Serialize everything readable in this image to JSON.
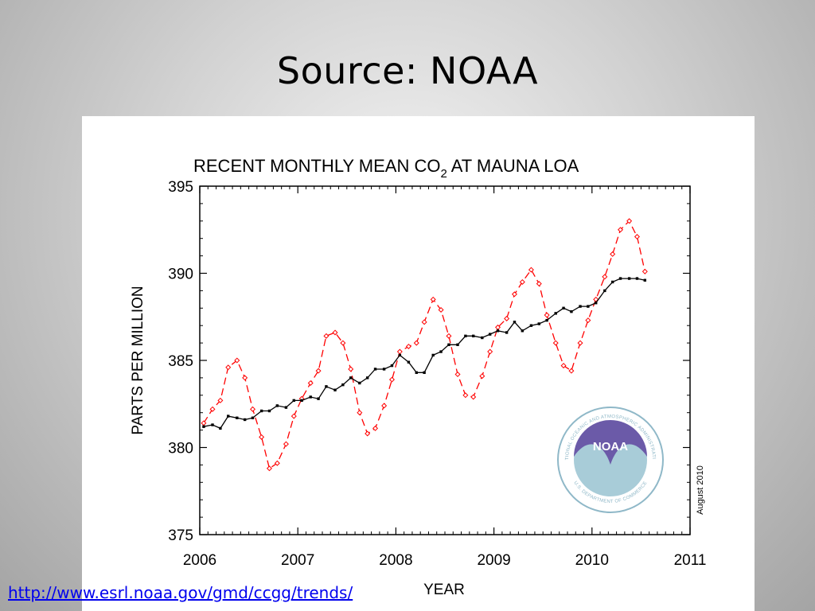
{
  "slide": {
    "title": "Source: NOAA",
    "link_text": "http://www.esrl.noaa.gov/gmd/ccgg/trends/"
  },
  "logo": {
    "top_text": "NATIONAL OCEANIC AND ATMOSPHERIC ADMINISTRATION",
    "center_text": "NOAA",
    "bottom_text": "U.S. DEPARTMENT OF COMMERCE"
  },
  "chart_data": {
    "type": "line",
    "title_main": "RECENT MONTHLY MEAN CO",
    "title_sub": "2",
    "title_rest": " AT MAUNA LOA",
    "xlabel": "YEAR",
    "ylabel": "PARTS PER MILLION",
    "date_note": "August 2010",
    "xlim": [
      2006,
      2011
    ],
    "ylim": [
      375,
      395
    ],
    "x_ticks": [
      2006,
      2007,
      2008,
      2009,
      2010,
      2011
    ],
    "y_ticks": [
      375,
      380,
      385,
      390,
      395
    ],
    "grid": false,
    "legend": "none",
    "x": [
      2006.04,
      2006.13,
      2006.21,
      2006.29,
      2006.38,
      2006.46,
      2006.54,
      2006.63,
      2006.71,
      2006.79,
      2006.88,
      2006.96,
      2007.04,
      2007.13,
      2007.21,
      2007.29,
      2007.38,
      2007.46,
      2007.54,
      2007.63,
      2007.71,
      2007.79,
      2007.88,
      2007.96,
      2008.04,
      2008.13,
      2008.21,
      2008.29,
      2008.38,
      2008.46,
      2008.54,
      2008.63,
      2008.71,
      2008.79,
      2008.88,
      2008.96,
      2009.04,
      2009.13,
      2009.21,
      2009.29,
      2009.38,
      2009.46,
      2009.54,
      2009.63,
      2009.71,
      2009.79,
      2009.88,
      2009.96,
      2010.04,
      2010.13,
      2010.21,
      2010.29,
      2010.38,
      2010.46,
      2010.54
    ],
    "series": [
      {
        "color": "#ff0000",
        "style": "dashed",
        "marker": "diamond",
        "values": [
          381.4,
          382.2,
          382.7,
          384.6,
          385.0,
          384.0,
          382.2,
          380.6,
          378.8,
          379.1,
          380.2,
          381.8,
          382.8,
          383.7,
          384.4,
          386.4,
          386.6,
          386.0,
          384.5,
          382.0,
          380.8,
          381.1,
          382.4,
          383.9,
          385.5,
          385.8,
          386.0,
          387.2,
          388.5,
          387.9,
          386.4,
          384.2,
          383.0,
          382.9,
          384.1,
          385.5,
          386.9,
          387.4,
          388.8,
          389.5,
          390.2,
          389.4,
          387.6,
          386.0,
          384.7,
          384.4,
          386.0,
          387.3,
          388.5,
          389.8,
          391.1,
          392.5,
          393.0,
          392.1,
          390.1
        ]
      },
      {
        "color": "#000000",
        "style": "solid",
        "marker": "square",
        "values": [
          381.2,
          381.3,
          381.1,
          381.8,
          381.7,
          381.6,
          381.7,
          382.1,
          382.1,
          382.4,
          382.3,
          382.7,
          382.7,
          382.9,
          382.8,
          383.5,
          383.3,
          383.6,
          384.0,
          383.7,
          384.0,
          384.5,
          384.5,
          384.7,
          385.3,
          384.9,
          384.3,
          384.3,
          385.3,
          385.5,
          385.9,
          385.9,
          386.4,
          386.4,
          386.3,
          386.5,
          386.7,
          386.6,
          387.2,
          386.7,
          387.0,
          387.1,
          387.3,
          387.7,
          388.0,
          387.8,
          388.1,
          388.1,
          388.3,
          389.0,
          389.5,
          389.7,
          389.7,
          389.7,
          389.6
        ]
      }
    ]
  }
}
